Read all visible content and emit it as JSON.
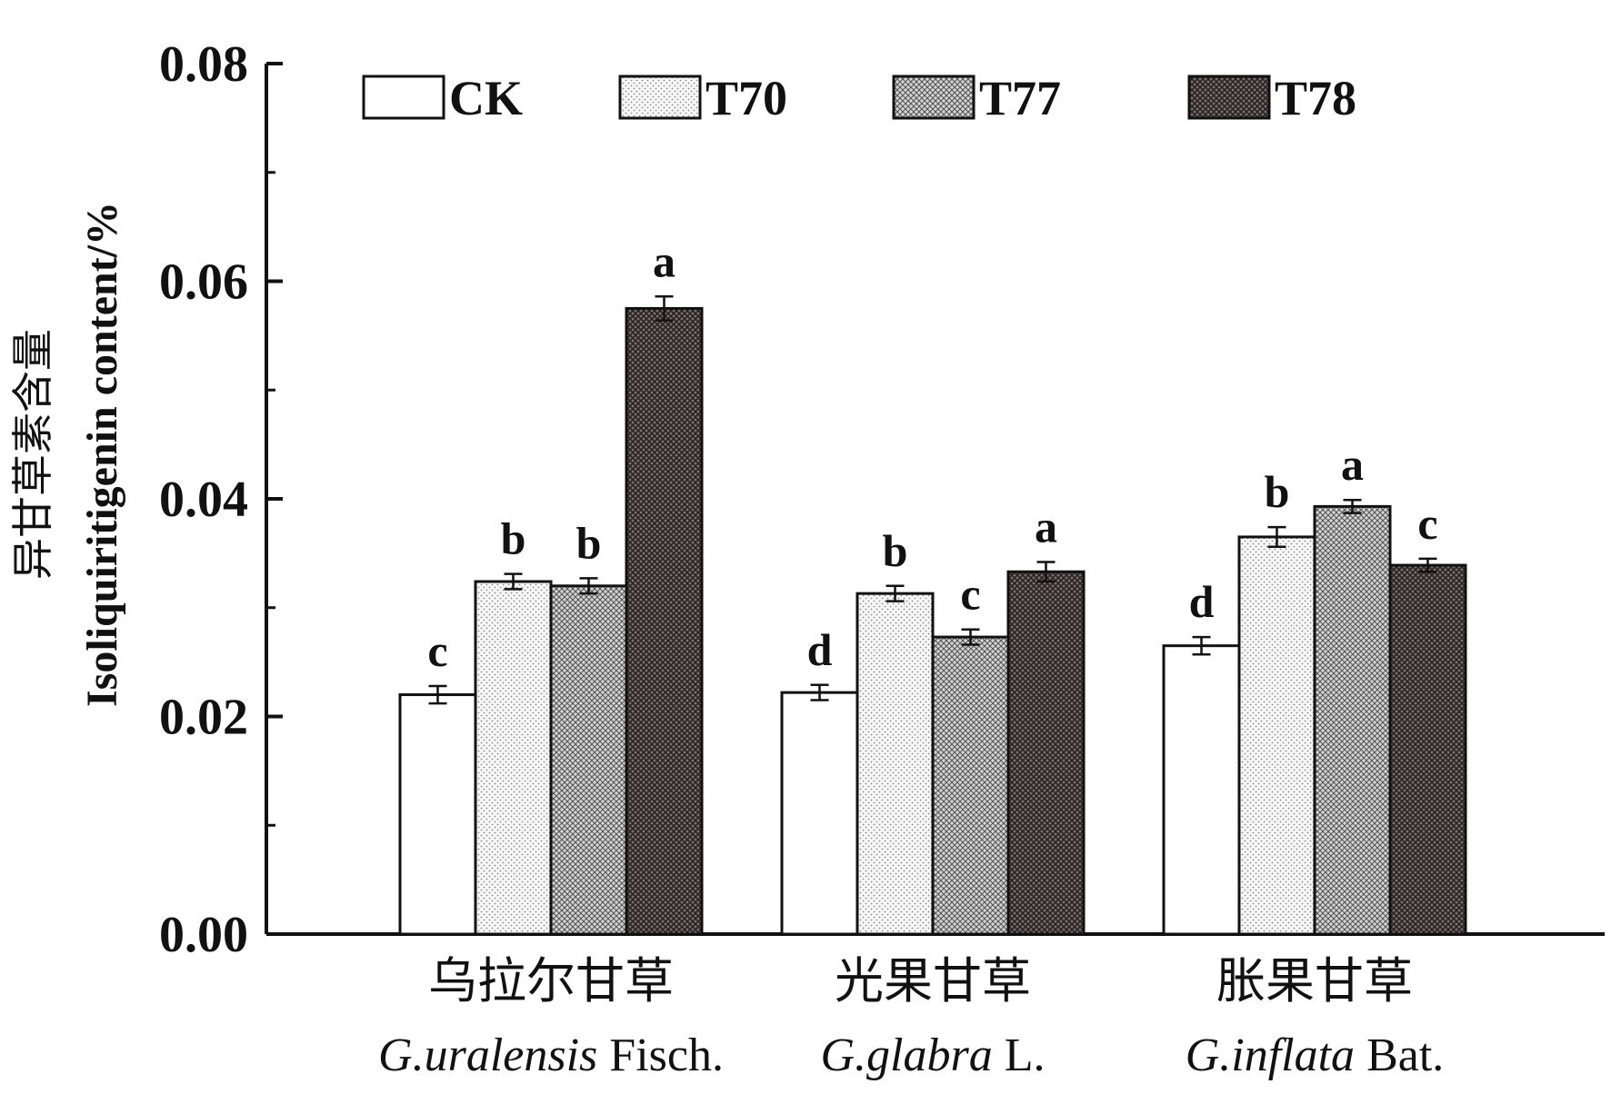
{
  "chart_data": {
    "type": "bar",
    "title": "",
    "ylabel": "异甘草素含量",
    "ylabel_en": "Isoliquiritigenin content/%",
    "ylim": [
      0,
      0.08
    ],
    "yticks": [
      "0.00",
      "0.02",
      "0.04",
      "0.06",
      "0.08"
    ],
    "ytick_values": [
      0,
      0.02,
      0.04,
      0.06,
      0.08
    ],
    "categories": [
      {
        "cn": "乌拉尔甘草",
        "genus": "G.uralensis",
        "author": "Fisch."
      },
      {
        "cn": "光果甘草",
        "genus": "G.glabra",
        "author": "L."
      },
      {
        "cn": "胀果甘草",
        "genus": "G.inflata",
        "author": "Bat."
      }
    ],
    "series": [
      {
        "name": "CK",
        "fill": "#ffffff",
        "pattern": "none",
        "values": [
          0.022,
          0.0222,
          0.0265
        ],
        "errors": [
          0.0008,
          0.0007,
          0.0008
        ],
        "letters": [
          "c",
          "d",
          "d"
        ]
      },
      {
        "name": "T70",
        "fill": "#f4f4f4",
        "pattern": "dots",
        "values": [
          0.0324,
          0.0313,
          0.0365
        ],
        "errors": [
          0.0007,
          0.0007,
          0.0009
        ],
        "letters": [
          "b",
          "b",
          "b"
        ]
      },
      {
        "name": "T77",
        "fill": "#b8b8b8",
        "pattern": "check",
        "values": [
          0.032,
          0.0273,
          0.0393
        ],
        "errors": [
          0.0007,
          0.0007,
          0.0006
        ],
        "letters": [
          "b",
          "c",
          "a"
        ]
      },
      {
        "name": "T78",
        "fill": "#5e5454",
        "pattern": "dark",
        "values": [
          0.0575,
          0.0333,
          0.0339
        ],
        "errors": [
          0.0011,
          0.0009,
          0.0006
        ],
        "letters": [
          "a",
          "a",
          "c"
        ]
      }
    ],
    "legend_position": "top"
  }
}
